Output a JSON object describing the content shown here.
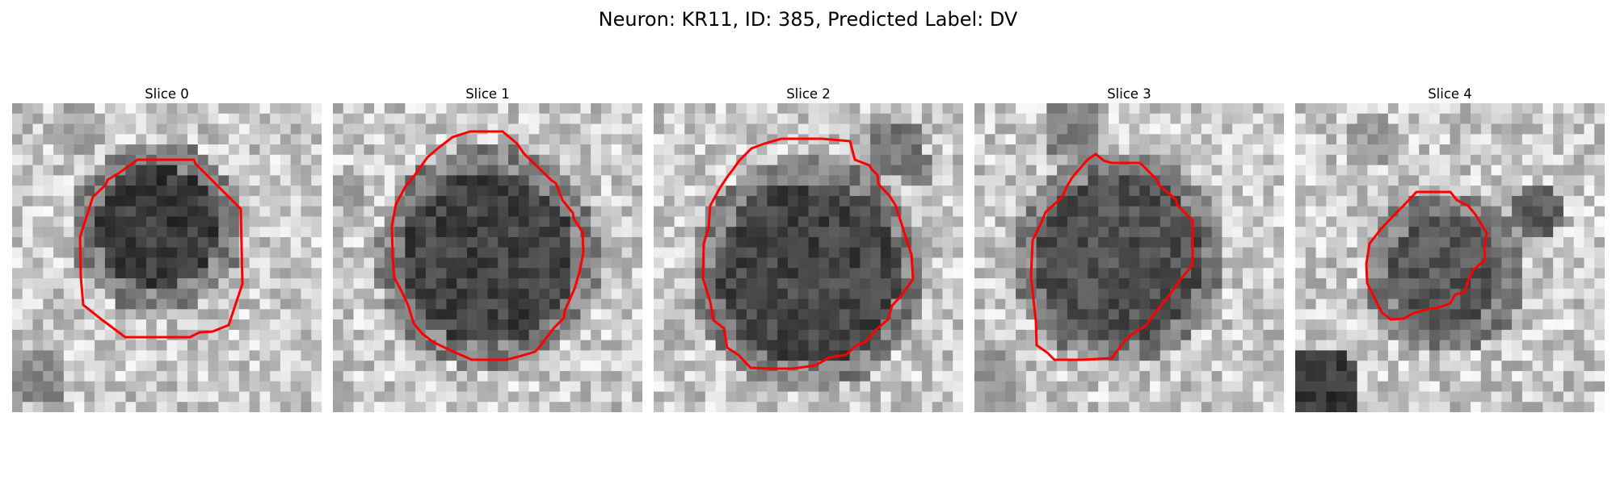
{
  "figure": {
    "title": "Neuron: KR11, ID: 385, Predicted Label: DV"
  },
  "contour_color": "#ff0000",
  "panels": [
    {
      "title": "Slice 0"
    },
    {
      "title": "Slice 1"
    },
    {
      "title": "Slice 2"
    },
    {
      "title": "Slice 3"
    },
    {
      "title": "Slice 4"
    }
  ]
}
